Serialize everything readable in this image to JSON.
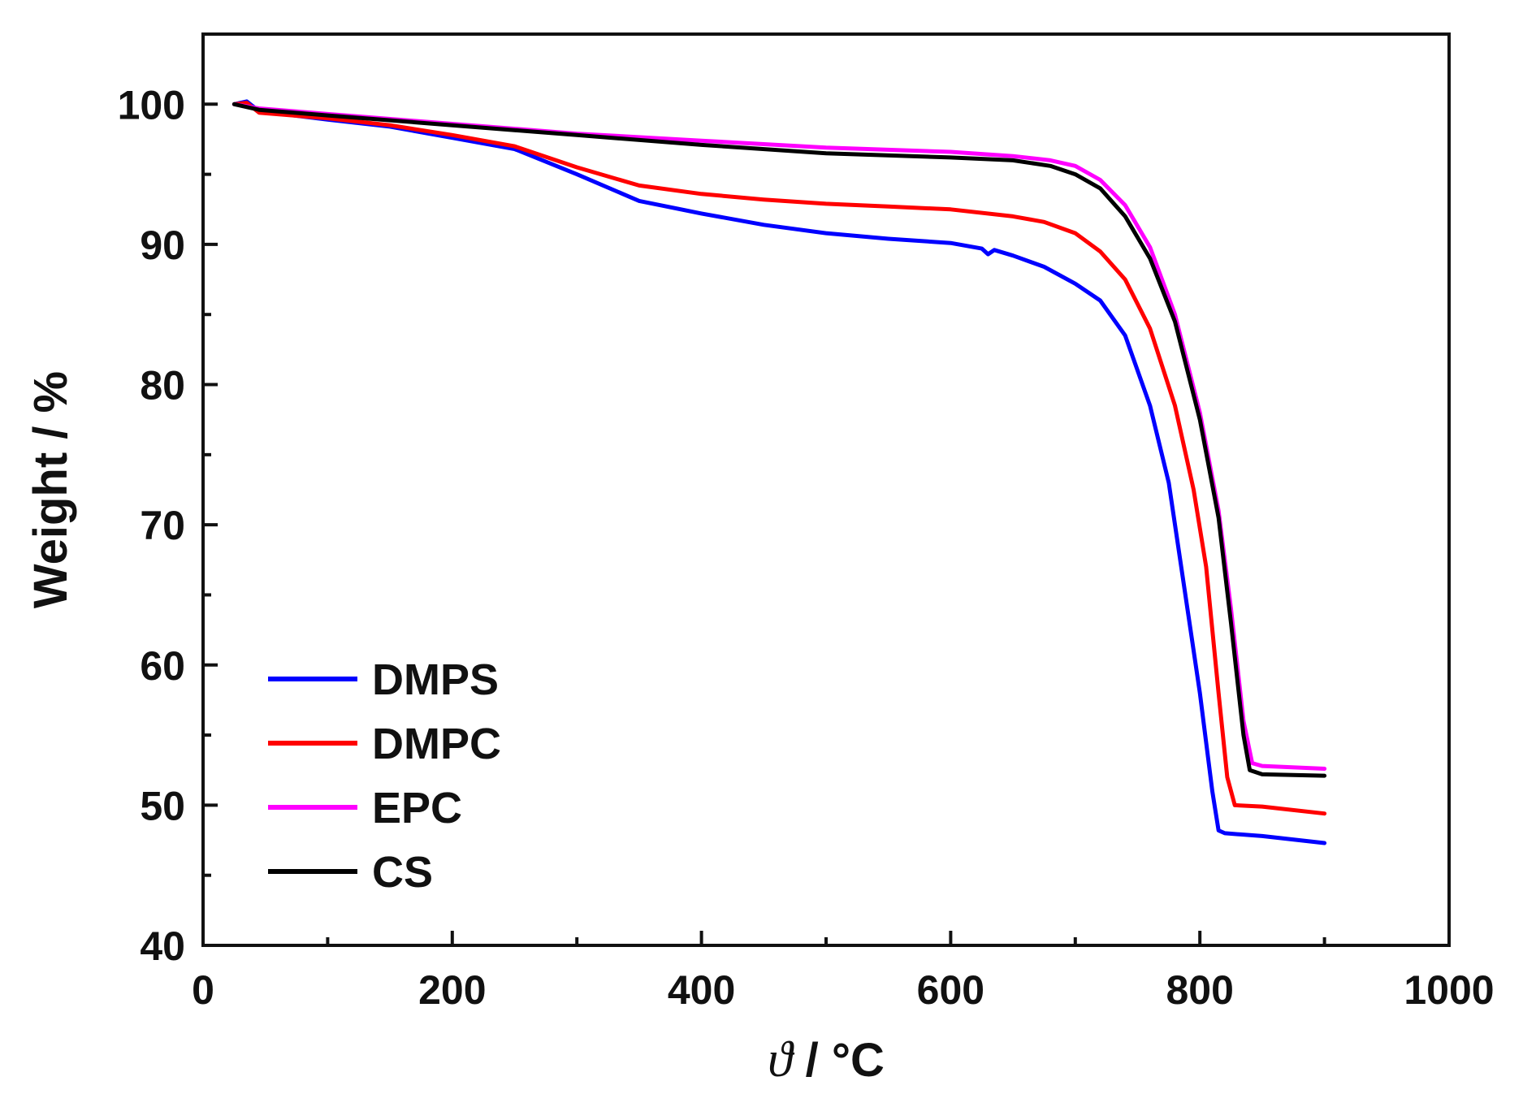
{
  "chart_data": {
    "type": "line",
    "title": "",
    "xlabel": {
      "symbol": "ϑ",
      "unit": " / °C"
    },
    "ylabel": "Weight / %",
    "xlim": [
      0,
      1000
    ],
    "ylim": [
      40,
      105
    ],
    "x_ticks": [
      0,
      200,
      400,
      600,
      800,
      1000
    ],
    "x_tick_labels": [
      "0",
      "200",
      "400",
      "600",
      "800",
      "1000"
    ],
    "y_ticks": [
      40,
      50,
      60,
      70,
      80,
      90,
      100
    ],
    "y_tick_labels": [
      "40",
      "50",
      "60",
      "70",
      "80",
      "90",
      "100"
    ],
    "x_minor_step": 100,
    "y_minor_step": 5,
    "grid": false,
    "legend_position": "bottom-left",
    "series": [
      {
        "name": "DMPS",
        "color": "#0000ff",
        "points": [
          [
            25,
            100
          ],
          [
            35,
            100.2
          ],
          [
            45,
            99.5
          ],
          [
            100,
            98.9
          ],
          [
            150,
            98.4
          ],
          [
            200,
            97.6
          ],
          [
            250,
            96.8
          ],
          [
            300,
            95
          ],
          [
            350,
            93.1
          ],
          [
            400,
            92.2
          ],
          [
            450,
            91.4
          ],
          [
            500,
            90.8
          ],
          [
            550,
            90.4
          ],
          [
            600,
            90.1
          ],
          [
            625,
            89.7
          ],
          [
            630,
            89.3
          ],
          [
            635,
            89.6
          ],
          [
            650,
            89.2
          ],
          [
            675,
            88.4
          ],
          [
            700,
            87.2
          ],
          [
            720,
            86
          ],
          [
            740,
            83.5
          ],
          [
            760,
            78.5
          ],
          [
            775,
            73
          ],
          [
            790,
            64
          ],
          [
            800,
            58
          ],
          [
            810,
            51
          ],
          [
            815,
            48.2
          ],
          [
            820,
            48
          ],
          [
            850,
            47.8
          ],
          [
            900,
            47.3
          ]
        ]
      },
      {
        "name": "DMPC",
        "color": "#ff0000",
        "points": [
          [
            25,
            100
          ],
          [
            35,
            100.1
          ],
          [
            45,
            99.4
          ],
          [
            100,
            99
          ],
          [
            150,
            98.5
          ],
          [
            200,
            97.8
          ],
          [
            250,
            97
          ],
          [
            300,
            95.5
          ],
          [
            350,
            94.2
          ],
          [
            400,
            93.6
          ],
          [
            450,
            93.2
          ],
          [
            500,
            92.9
          ],
          [
            550,
            92.7
          ],
          [
            600,
            92.5
          ],
          [
            650,
            92
          ],
          [
            675,
            91.6
          ],
          [
            700,
            90.8
          ],
          [
            720,
            89.5
          ],
          [
            740,
            87.5
          ],
          [
            760,
            84
          ],
          [
            780,
            78.5
          ],
          [
            795,
            72.5
          ],
          [
            805,
            67
          ],
          [
            815,
            58
          ],
          [
            822,
            52
          ],
          [
            828,
            50
          ],
          [
            850,
            49.9
          ],
          [
            900,
            49.4
          ]
        ]
      },
      {
        "name": "EPC",
        "color": "#ff00ff",
        "points": [
          [
            25,
            100
          ],
          [
            45,
            99.7
          ],
          [
            100,
            99.3
          ],
          [
            200,
            98.6
          ],
          [
            300,
            97.9
          ],
          [
            400,
            97.4
          ],
          [
            500,
            96.9
          ],
          [
            600,
            96.6
          ],
          [
            650,
            96.3
          ],
          [
            680,
            96
          ],
          [
            700,
            95.6
          ],
          [
            720,
            94.6
          ],
          [
            740,
            92.8
          ],
          [
            760,
            89.8
          ],
          [
            780,
            85
          ],
          [
            800,
            78
          ],
          [
            815,
            71
          ],
          [
            825,
            64
          ],
          [
            835,
            56
          ],
          [
            842,
            53
          ],
          [
            850,
            52.8
          ],
          [
            900,
            52.6
          ]
        ]
      },
      {
        "name": "CS",
        "color": "#000000",
        "points": [
          [
            25,
            100
          ],
          [
            45,
            99.6
          ],
          [
            100,
            99.2
          ],
          [
            200,
            98.5
          ],
          [
            300,
            97.8
          ],
          [
            400,
            97.1
          ],
          [
            500,
            96.5
          ],
          [
            600,
            96.2
          ],
          [
            650,
            96
          ],
          [
            680,
            95.6
          ],
          [
            700,
            95
          ],
          [
            720,
            94
          ],
          [
            740,
            92
          ],
          [
            760,
            89
          ],
          [
            780,
            84.5
          ],
          [
            800,
            77.5
          ],
          [
            815,
            70.5
          ],
          [
            825,
            63
          ],
          [
            835,
            55
          ],
          [
            840,
            52.5
          ],
          [
            850,
            52.2
          ],
          [
            900,
            52.1
          ]
        ]
      }
    ]
  }
}
